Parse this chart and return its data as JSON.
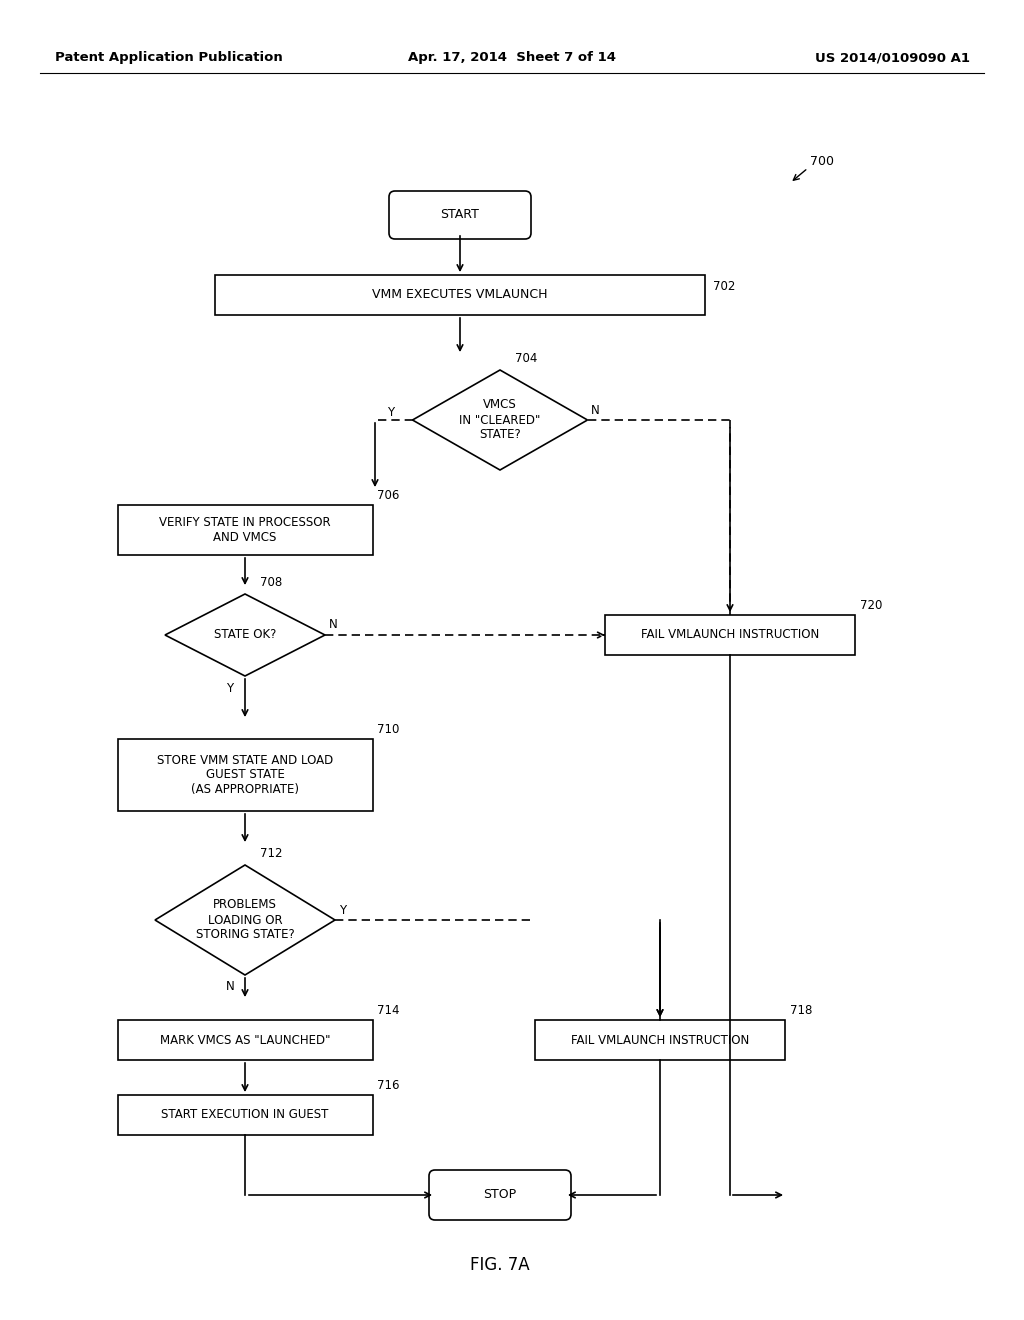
{
  "bg_color": "#ffffff",
  "header_left": "Patent Application Publication",
  "header_mid": "Apr. 17, 2014  Sheet 7 of 14",
  "header_right": "US 2014/0109090 A1",
  "fig_label": "FIG. 7A",
  "lw": 1.2
}
